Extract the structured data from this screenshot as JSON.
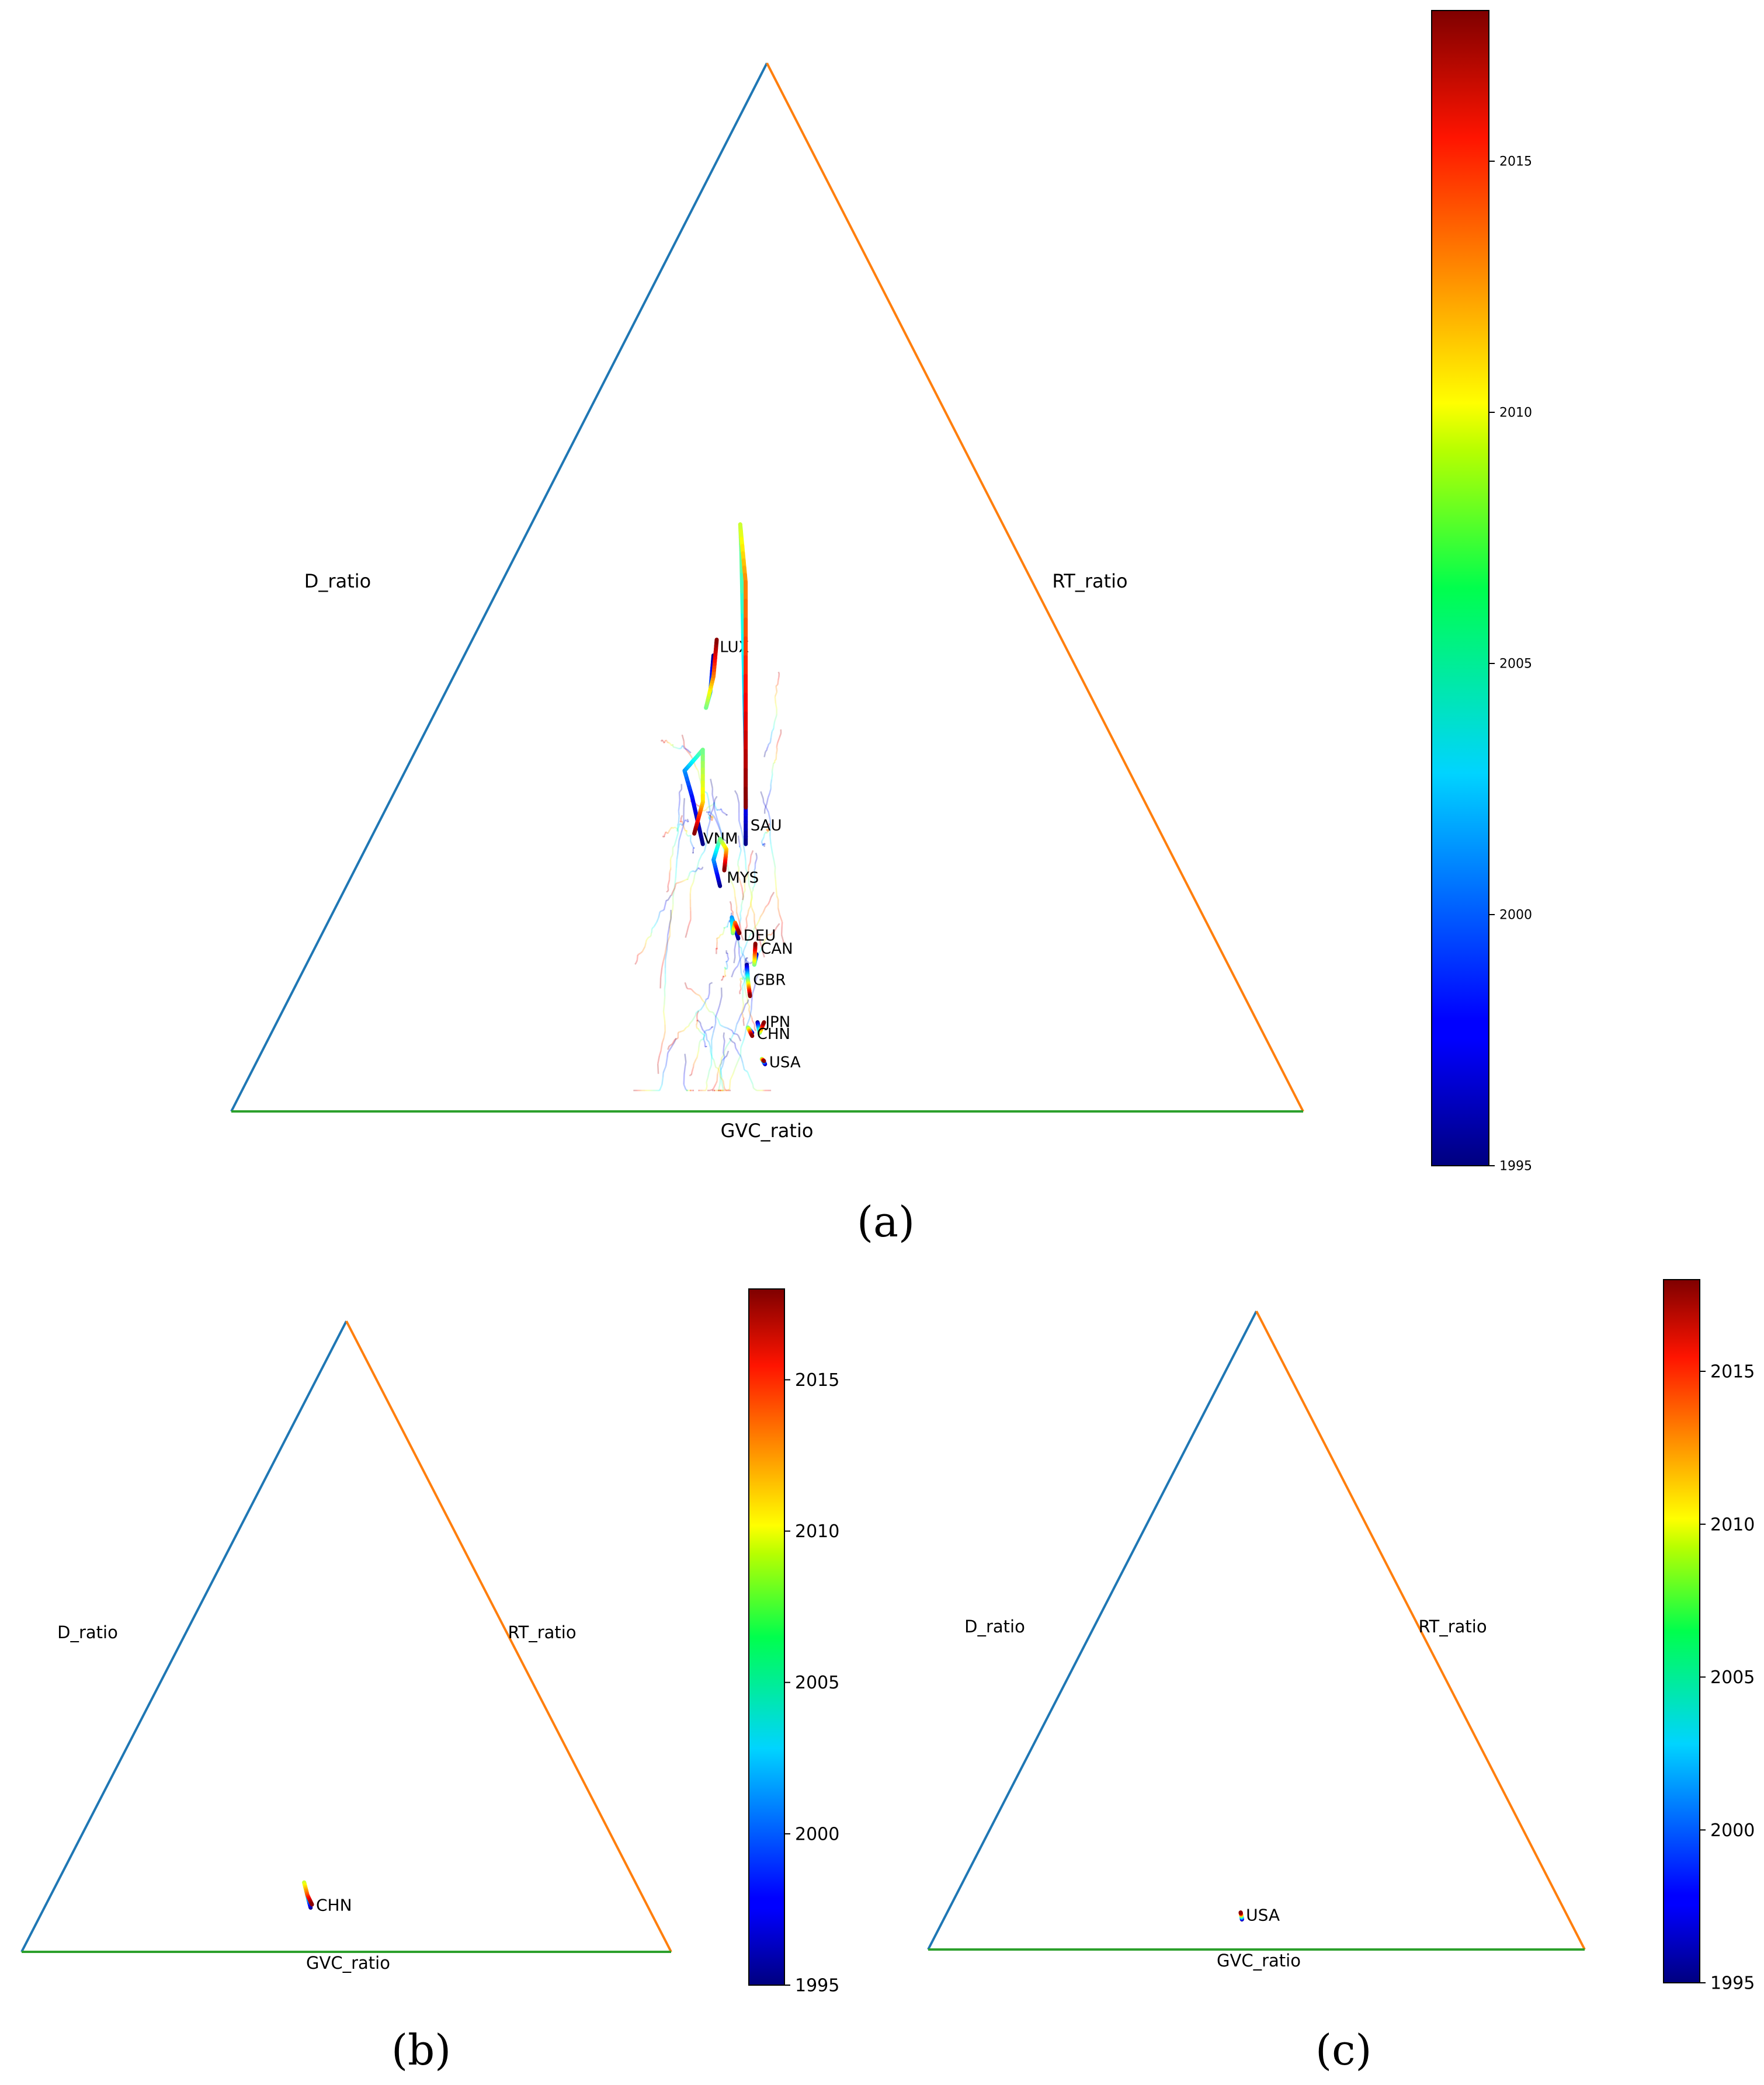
{
  "colorbar": {
    "colormap": "jet",
    "range": [
      1995,
      2018
    ],
    "ticks": [
      1995,
      2000,
      2005,
      2010,
      2015
    ]
  },
  "edge_colors": {
    "D_ratio": "#1f77b4",
    "RT_ratio": "#ff7f0e",
    "GVC_ratio": "#2ca02c"
  },
  "chart_data": [
    {
      "panel": "(a)",
      "type": "line",
      "subtype": "ternary-trajectory",
      "axis_labels": {
        "left": "D_ratio",
        "right": "RT_ratio",
        "bottom": "GVC_ratio"
      },
      "labeled_series": [
        {
          "name": "LUX",
          "points": [
            [
              0.45,
              0.435,
              1995
            ],
            [
              0.447,
              0.4,
              2001
            ],
            [
              0.443,
              0.385,
              2006
            ],
            [
              0.45,
              0.415,
              2012
            ],
            [
              0.453,
              0.45,
              2018
            ]
          ]
        },
        {
          "name": "SAU",
          "points": [
            [
              0.48,
              0.255,
              1995
            ],
            [
              0.48,
              0.34,
              2001
            ],
            [
              0.476,
              0.535,
              2006
            ],
            [
              0.475,
              0.56,
              2008
            ],
            [
              0.48,
              0.505,
              2012
            ],
            [
              0.48,
              0.29,
              2018
            ]
          ]
        },
        {
          "name": "VNM",
          "points": [
            [
              0.44,
              0.255,
              1995
            ],
            [
              0.43,
              0.3,
              1998
            ],
            [
              0.423,
              0.325,
              2001
            ],
            [
              0.44,
              0.345,
              2006
            ],
            [
              0.44,
              0.295,
              2010
            ],
            [
              0.432,
              0.265,
              2018
            ]
          ]
        },
        {
          "name": "MYS",
          "points": [
            [
              0.456,
              0.215,
              1995
            ],
            [
              0.45,
              0.24,
              2001
            ],
            [
              0.456,
              0.26,
              2006
            ],
            [
              0.462,
              0.25,
              2010
            ],
            [
              0.46,
              0.23,
              2018
            ]
          ]
        },
        {
          "name": "DEU",
          "points": [
            [
              0.473,
              0.165,
              1995
            ],
            [
              0.467,
              0.185,
              2001
            ],
            [
              0.468,
              0.17,
              2006
            ],
            [
              0.47,
              0.18,
              2012
            ],
            [
              0.474,
              0.17,
              2018
            ]
          ]
        },
        {
          "name": "CAN",
          "points": [
            [
              0.49,
              0.15,
              1995
            ],
            [
              0.488,
              0.14,
              2006
            ],
            [
              0.489,
              0.16,
              2018
            ]
          ]
        },
        {
          "name": "GBR",
          "points": [
            [
              0.481,
              0.14,
              1995
            ],
            [
              0.482,
              0.125,
              2006
            ],
            [
              0.484,
              0.11,
              2018
            ]
          ]
        },
        {
          "name": "JPN",
          "points": [
            [
              0.491,
              0.085,
              1995
            ],
            [
              0.493,
              0.075,
              2006
            ],
            [
              0.497,
              0.085,
              2018
            ]
          ]
        },
        {
          "name": "CHN",
          "points": [
            [
              0.486,
              0.075,
              1995
            ],
            [
              0.482,
              0.08,
              2006
            ],
            [
              0.486,
              0.072,
              2018
            ]
          ]
        },
        {
          "name": "USA",
          "points": [
            [
              0.498,
              0.045,
              1995
            ],
            [
              0.495,
              0.05,
              2006
            ],
            [
              0.497,
              0.048,
              2018
            ]
          ]
        }
      ]
    },
    {
      "panel": "(b)",
      "type": "line",
      "subtype": "ternary-trajectory",
      "axis_labels": {
        "left": "D_ratio",
        "right": "RT_ratio",
        "bottom": "GVC_ratio"
      },
      "labeled_series": [
        {
          "name": "CHN",
          "points": [
            [
              0.445,
              0.07,
              1995
            ],
            [
              0.441,
              0.085,
              2002
            ],
            [
              0.435,
              0.11,
              2008
            ],
            [
              0.44,
              0.09,
              2013
            ],
            [
              0.447,
              0.075,
              2018
            ]
          ]
        }
      ]
    },
    {
      "panel": "(c)",
      "type": "line",
      "subtype": "ternary-trajectory",
      "axis_labels": {
        "left": "D_ratio",
        "right": "RT_ratio",
        "bottom": "GVC_ratio"
      },
      "labeled_series": [
        {
          "name": "USA",
          "points": [
            [
              0.478,
              0.047,
              1995
            ],
            [
              0.477,
              0.053,
              2006
            ],
            [
              0.476,
              0.058,
              2018
            ]
          ]
        }
      ]
    }
  ],
  "panel_labels": {
    "a": "(a)",
    "b": "(b)",
    "c": "(c)"
  }
}
